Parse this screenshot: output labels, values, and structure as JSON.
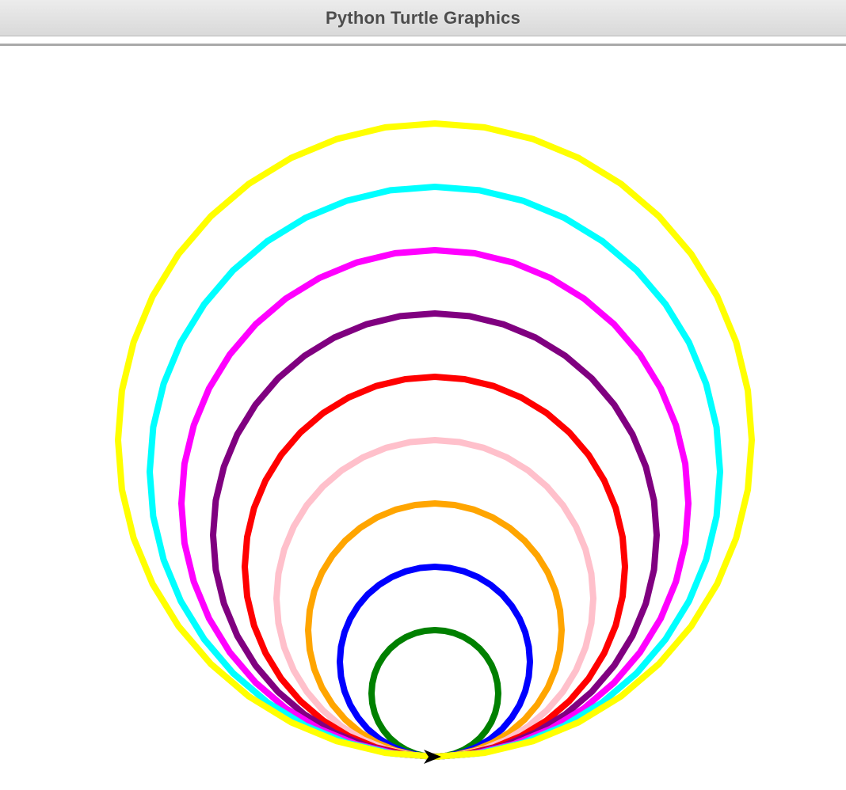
{
  "window": {
    "title": "Python Turtle Graphics"
  },
  "turtle": {
    "icon": "arrow-turtle-icon",
    "heading": "east",
    "pen_width": 8,
    "circles": [
      {
        "name": "green-circle",
        "color": "#008000",
        "radius": 80
      },
      {
        "name": "blue-circle",
        "color": "#0000ff",
        "radius": 120
      },
      {
        "name": "orange-circle",
        "color": "#ffa500",
        "radius": 160
      },
      {
        "name": "pink-circle",
        "color": "#ffc0cb",
        "radius": 200
      },
      {
        "name": "red-circle",
        "color": "#ff0000",
        "radius": 240
      },
      {
        "name": "purple-circle",
        "color": "#800080",
        "radius": 280
      },
      {
        "name": "magenta-circle",
        "color": "#ff00ff",
        "radius": 320
      },
      {
        "name": "cyan-circle",
        "color": "#00ffff",
        "radius": 360
      },
      {
        "name": "yellow-circle",
        "color": "#ffff00",
        "radius": 400
      }
    ]
  }
}
